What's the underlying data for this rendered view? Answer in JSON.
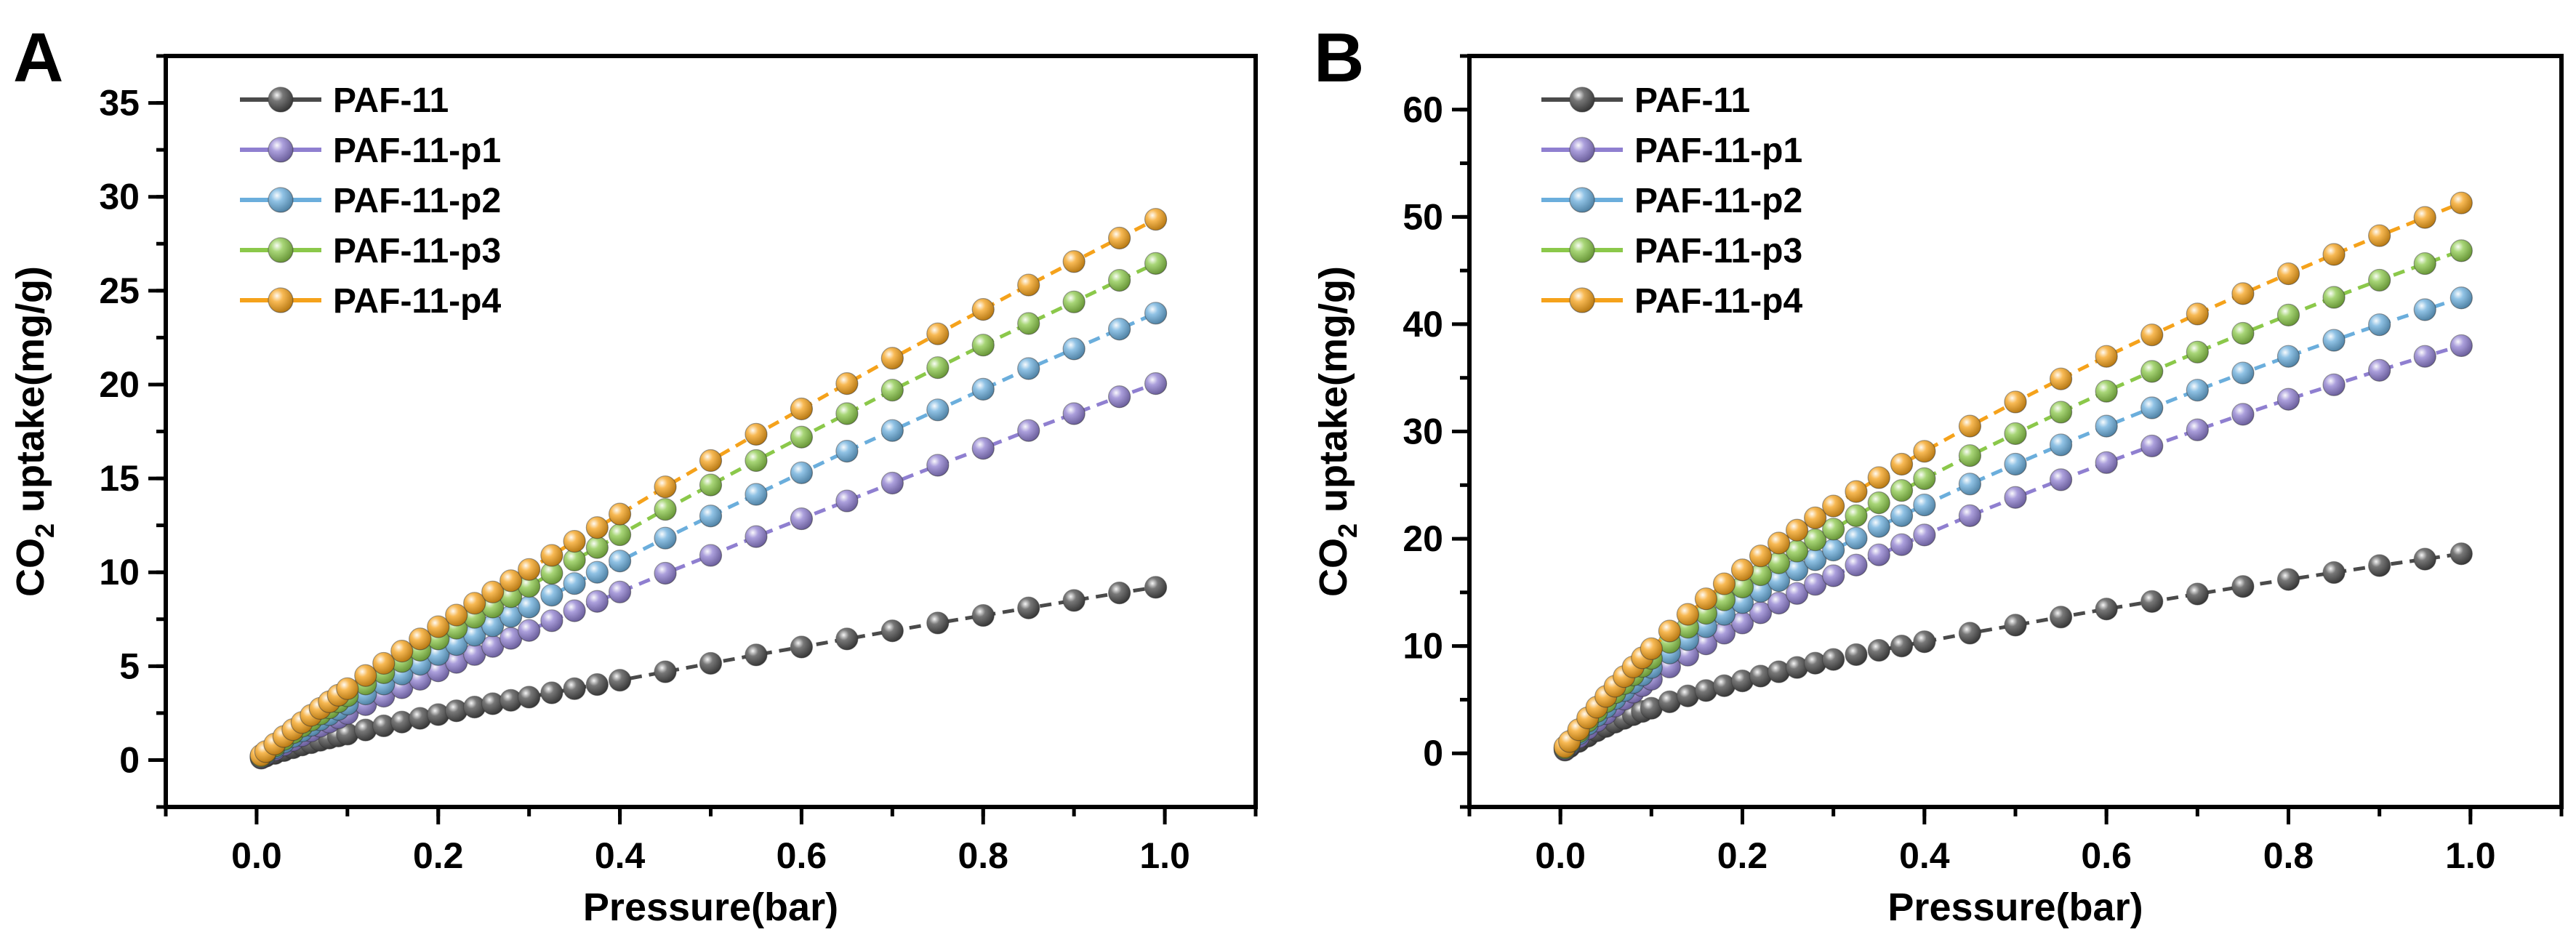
{
  "chart_data": [
    {
      "panel_label": "A",
      "type": "line",
      "xlabel": "Pressure(bar)",
      "ylabel_main": "CO",
      "ylabel_sub": "2",
      "ylabel_rest": " uptake(mg/g)",
      "xlim": [
        -0.1,
        1.1
      ],
      "ylim": [
        -2.5,
        37.5
      ],
      "xticks": [
        0.0,
        0.2,
        0.4,
        0.6,
        0.8,
        1.0
      ],
      "xtick_labels": [
        "0.0",
        "0.2",
        "0.4",
        "0.6",
        "0.8",
        "1.0"
      ],
      "yticks": [
        0,
        5,
        10,
        15,
        20,
        25,
        30,
        35
      ],
      "ytick_labels": [
        "0",
        "5",
        "10",
        "15",
        "20",
        "25",
        "30",
        "35"
      ],
      "legend_position": "top-left",
      "x": [
        0.005,
        0.01,
        0.02,
        0.03,
        0.04,
        0.05,
        0.06,
        0.07,
        0.08,
        0.09,
        0.1,
        0.12,
        0.14,
        0.16,
        0.18,
        0.2,
        0.22,
        0.24,
        0.26,
        0.28,
        0.3,
        0.325,
        0.35,
        0.375,
        0.4,
        0.45,
        0.5,
        0.55,
        0.6,
        0.65,
        0.7,
        0.75,
        0.8,
        0.85,
        0.9,
        0.95,
        0.99
      ],
      "series": [
        {
          "name": "PAF-11",
          "color": "#4a4a4a",
          "values": [
            0.1,
            0.2,
            0.35,
            0.5,
            0.65,
            0.8,
            0.92,
            1.05,
            1.17,
            1.28,
            1.38,
            1.6,
            1.82,
            2.02,
            2.22,
            2.42,
            2.62,
            2.82,
            3.0,
            3.18,
            3.35,
            3.58,
            3.8,
            4.02,
            4.25,
            4.7,
            5.15,
            5.6,
            6.02,
            6.45,
            6.88,
            7.3,
            7.7,
            8.1,
            8.5,
            8.9,
            9.2
          ]
        },
        {
          "name": "PAF-11-p1",
          "color": "#8f7fd0",
          "values": [
            0.15,
            0.3,
            0.55,
            0.8,
            1.05,
            1.3,
            1.55,
            1.8,
            2.02,
            2.25,
            2.48,
            2.95,
            3.4,
            3.85,
            4.3,
            4.75,
            5.2,
            5.62,
            6.05,
            6.48,
            6.9,
            7.42,
            7.95,
            8.45,
            8.95,
            9.95,
            10.9,
            11.9,
            12.85,
            13.8,
            14.75,
            15.7,
            16.6,
            17.55,
            18.45,
            19.35,
            20.05
          ]
        },
        {
          "name": "PAF-11-p2",
          "color": "#6baedc",
          "values": [
            0.2,
            0.35,
            0.65,
            0.95,
            1.25,
            1.55,
            1.85,
            2.15,
            2.42,
            2.7,
            2.98,
            3.52,
            4.05,
            4.58,
            5.1,
            5.62,
            6.15,
            6.65,
            7.15,
            7.65,
            8.15,
            8.78,
            9.4,
            10.0,
            10.6,
            11.82,
            13.0,
            14.15,
            15.3,
            16.45,
            17.55,
            18.65,
            19.75,
            20.85,
            21.9,
            22.95,
            23.8
          ]
        },
        {
          "name": "PAF-11-p3",
          "color": "#8bc84a",
          "values": [
            0.2,
            0.4,
            0.75,
            1.1,
            1.45,
            1.8,
            2.12,
            2.45,
            2.78,
            3.1,
            3.42,
            4.05,
            4.65,
            5.25,
            5.85,
            6.45,
            7.02,
            7.6,
            8.15,
            8.7,
            9.25,
            9.95,
            10.65,
            11.32,
            12.0,
            13.35,
            14.65,
            15.95,
            17.2,
            18.45,
            19.7,
            20.9,
            22.1,
            23.25,
            24.4,
            25.55,
            26.45
          ]
        },
        {
          "name": "PAF-11-p4",
          "color": "#f5a21b",
          "values": [
            0.25,
            0.45,
            0.85,
            1.25,
            1.62,
            2.0,
            2.38,
            2.75,
            3.1,
            3.45,
            3.8,
            4.5,
            5.15,
            5.8,
            6.45,
            7.1,
            7.72,
            8.35,
            8.95,
            9.55,
            10.15,
            10.9,
            11.65,
            12.38,
            13.1,
            14.55,
            15.95,
            17.35,
            18.7,
            20.05,
            21.4,
            22.7,
            24.0,
            25.3,
            26.55,
            27.8,
            28.8
          ]
        }
      ]
    },
    {
      "panel_label": "B",
      "type": "line",
      "xlabel": "Pressure(bar)",
      "ylabel_main": "CO",
      "ylabel_sub": "2",
      "ylabel_rest": " uptake(mg/g)",
      "xlim": [
        -0.1,
        1.1
      ],
      "ylim": [
        -5,
        65
      ],
      "xticks": [
        0.0,
        0.2,
        0.4,
        0.6,
        0.8,
        1.0
      ],
      "xtick_labels": [
        "0.0",
        "0.2",
        "0.4",
        "0.6",
        "0.8",
        "1.0"
      ],
      "yticks": [
        0,
        10,
        20,
        30,
        40,
        50,
        60
      ],
      "ytick_labels": [
        "0",
        "10",
        "20",
        "30",
        "40",
        "50",
        "60"
      ],
      "legend_position": "top-left",
      "x": [
        0.005,
        0.01,
        0.02,
        0.03,
        0.04,
        0.05,
        0.06,
        0.07,
        0.08,
        0.09,
        0.1,
        0.12,
        0.14,
        0.16,
        0.18,
        0.2,
        0.22,
        0.24,
        0.26,
        0.28,
        0.3,
        0.325,
        0.35,
        0.375,
        0.4,
        0.45,
        0.5,
        0.55,
        0.6,
        0.65,
        0.7,
        0.75,
        0.8,
        0.85,
        0.9,
        0.95,
        0.99
      ],
      "series": [
        {
          "name": "PAF-11",
          "color": "#4a4a4a",
          "values": [
            0.3,
            0.6,
            1.1,
            1.6,
            2.1,
            2.5,
            2.9,
            3.25,
            3.6,
            3.9,
            4.2,
            4.8,
            5.35,
            5.85,
            6.3,
            6.75,
            7.2,
            7.6,
            8.0,
            8.4,
            8.75,
            9.2,
            9.6,
            10.0,
            10.4,
            11.2,
            11.95,
            12.7,
            13.45,
            14.15,
            14.85,
            15.55,
            16.2,
            16.85,
            17.5,
            18.1,
            18.6
          ]
        },
        {
          "name": "PAF-11-p1",
          "color": "#8f7fd0",
          "values": [
            0.4,
            0.8,
            1.5,
            2.3,
            3.0,
            3.7,
            4.4,
            5.05,
            5.7,
            6.3,
            6.9,
            8.05,
            9.15,
            10.2,
            11.2,
            12.15,
            13.1,
            14.0,
            14.9,
            15.75,
            16.55,
            17.55,
            18.5,
            19.45,
            20.35,
            22.15,
            23.85,
            25.5,
            27.1,
            28.65,
            30.15,
            31.6,
            33.0,
            34.35,
            35.7,
            37.0,
            38.0
          ]
        },
        {
          "name": "PAF-11-p2",
          "color": "#6baedc",
          "values": [
            0.5,
            0.9,
            1.8,
            2.7,
            3.5,
            4.3,
            5.1,
            5.85,
            6.6,
            7.3,
            8.0,
            9.35,
            10.6,
            11.8,
            12.95,
            14.05,
            15.1,
            16.1,
            17.1,
            18.05,
            18.95,
            20.05,
            21.15,
            22.15,
            23.15,
            25.1,
            26.95,
            28.75,
            30.5,
            32.2,
            33.85,
            35.45,
            37.0,
            38.5,
            39.95,
            41.35,
            42.45
          ]
        },
        {
          "name": "PAF-11-p3",
          "color": "#8bc84a",
          "values": [
            0.5,
            1.0,
            2.0,
            3.0,
            3.9,
            4.8,
            5.65,
            6.5,
            7.3,
            8.1,
            8.85,
            10.35,
            11.75,
            13.05,
            14.3,
            15.5,
            16.65,
            17.75,
            18.85,
            19.9,
            20.9,
            22.15,
            23.35,
            24.5,
            25.6,
            27.75,
            29.8,
            31.8,
            33.75,
            35.6,
            37.4,
            39.15,
            40.85,
            42.5,
            44.1,
            45.65,
            46.85
          ]
        },
        {
          "name": "PAF-11-p4",
          "color": "#f5a21b",
          "values": [
            0.6,
            1.1,
            2.2,
            3.3,
            4.3,
            5.3,
            6.25,
            7.15,
            8.05,
            8.9,
            9.75,
            11.4,
            12.95,
            14.4,
            15.8,
            17.1,
            18.4,
            19.6,
            20.8,
            21.95,
            23.05,
            24.4,
            25.7,
            26.95,
            28.15,
            30.5,
            32.75,
            34.9,
            37.0,
            39.0,
            40.95,
            42.85,
            44.7,
            46.5,
            48.25,
            49.95,
            51.3
          ]
        }
      ]
    }
  ]
}
